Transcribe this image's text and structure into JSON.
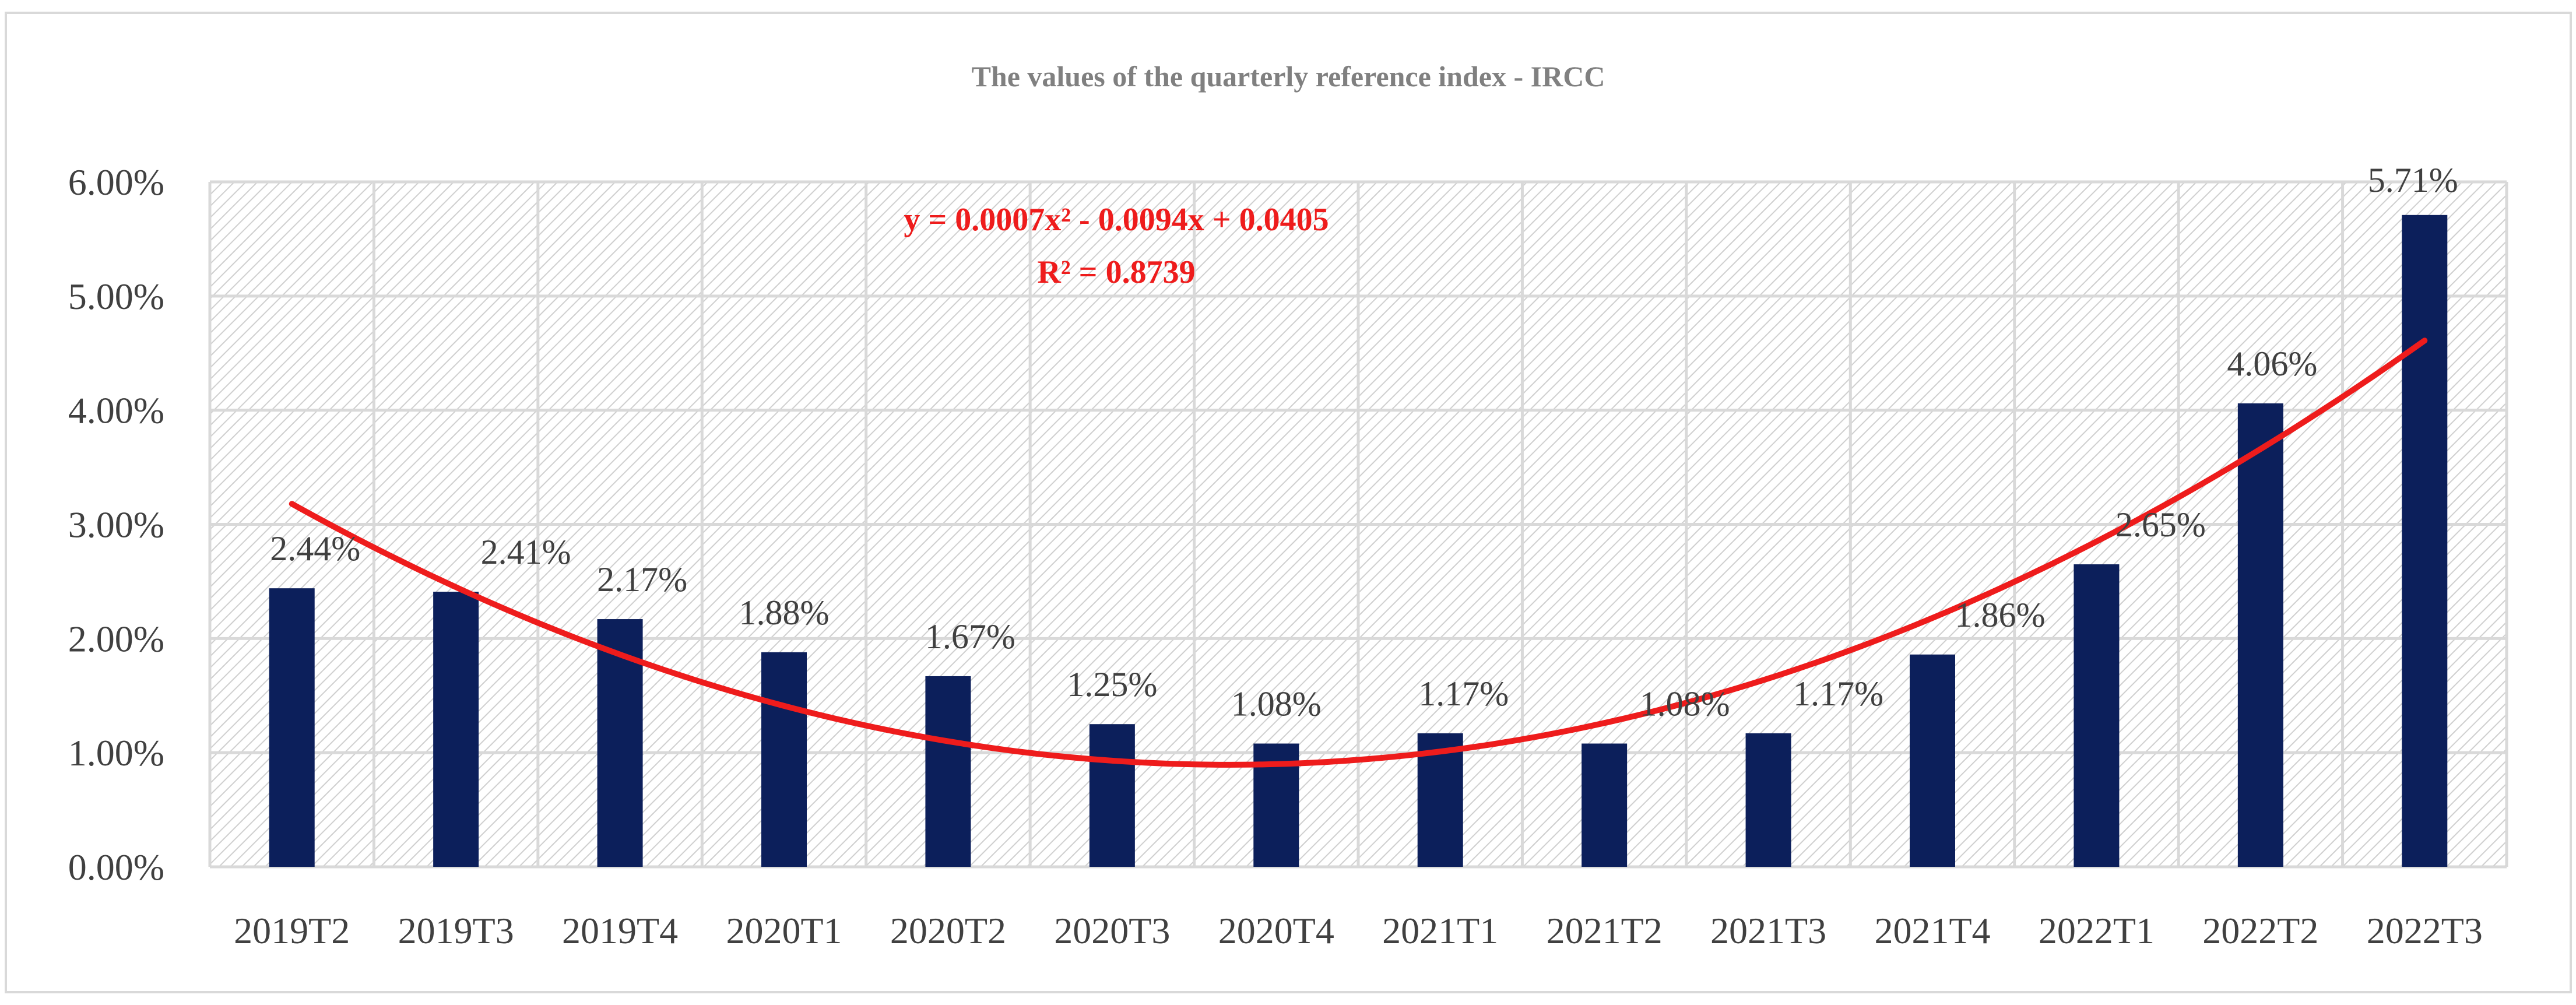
{
  "colors": {
    "bar": "#0c1f5b",
    "trend": "#ee1c1c",
    "grid": "#d9d9d9",
    "hatch": "#cfcfcf",
    "border": "#d9d9d9",
    "text": "#404040",
    "title": "#808080"
  },
  "chart_data": {
    "type": "bar",
    "title": "The values of the quarterly reference index - IRCC",
    "xlabel": "",
    "ylabel": "",
    "categories": [
      "2019T2",
      "2019T3",
      "2019T4",
      "2020T1",
      "2020T2",
      "2020T3",
      "2020T4",
      "2021T1",
      "2021T2",
      "2021T3",
      "2021T4",
      "2022T1",
      "2022T2",
      "2022T3"
    ],
    "values": [
      2.44,
      2.41,
      2.17,
      1.88,
      1.67,
      1.25,
      1.08,
      1.17,
      1.08,
      1.17,
      1.86,
      2.65,
      4.06,
      5.71
    ],
    "data_labels": [
      "2.44%",
      "2.41%",
      "2.17%",
      "1.88%",
      "1.67%",
      "1.25%",
      "1.08%",
      "1.17%",
      "1.08%",
      "1.17%",
      "1.86%",
      "2.65%",
      "4.06%",
      "5.71%"
    ],
    "ylim": [
      0,
      6
    ],
    "yticks": [
      0,
      1,
      2,
      3,
      4,
      5,
      6
    ],
    "ytick_labels": [
      "0.00%",
      "1.00%",
      "2.00%",
      "3.00%",
      "4.00%",
      "5.00%",
      "6.00%"
    ],
    "grid": true,
    "legend": "none",
    "trendline": {
      "type": "polynomial",
      "order": 2,
      "coefficients": [
        0.0007,
        -0.0094,
        0.0405
      ],
      "equation": "y = 0.0007x² - 0.0094x + 0.0405",
      "r_squared": "R² = 0.8739"
    }
  }
}
